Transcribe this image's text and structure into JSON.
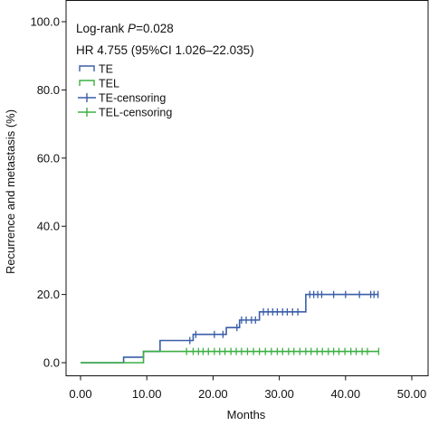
{
  "chart_data": {
    "type": "line",
    "subtype": "kaplan-meier step curve",
    "xlabel": "Months",
    "ylabel": "Recurrence and metastasis (%)",
    "xlim": [
      0,
      50
    ],
    "ylim": [
      0,
      100
    ],
    "xticks": [
      "0.00",
      "10.00",
      "20.00",
      "30.00",
      "40.00",
      "50.00"
    ],
    "yticks": [
      "0.0",
      "20.0",
      "40.0",
      "60.0",
      "80.0",
      "100.0"
    ],
    "grid": false,
    "legend_position": "top-left",
    "annotations": {
      "logrank_prefix": "Log-rank ",
      "logrank_p": "P",
      "logrank_value": "=0.028",
      "hr": "HR 4.755 (95%CI 1.026–22.035)"
    },
    "legend": [
      {
        "label": "TE",
        "kind": "line",
        "color": "#3a5ea8"
      },
      {
        "label": "TEL",
        "kind": "line",
        "color": "#3cb043"
      },
      {
        "label": "TE-censoring",
        "kind": "censor",
        "color": "#3a5ea8"
      },
      {
        "label": "TEL-censoring",
        "kind": "censor",
        "color": "#3cb043"
      }
    ],
    "series": [
      {
        "name": "TE",
        "color": "#3a5ea8",
        "steps": [
          [
            0,
            0
          ],
          [
            6.5,
            1.6
          ],
          [
            9.5,
            3.3
          ],
          [
            12,
            6.5
          ],
          [
            17,
            8.3
          ],
          [
            22,
            10.3
          ],
          [
            24,
            12.5
          ],
          [
            27,
            14.9
          ],
          [
            34,
            20
          ]
        ],
        "end_x": 45,
        "censored_x": [
          16.5,
          17.4,
          20.2,
          21.5,
          23.6,
          24.3,
          25.0,
          25.8,
          26.4,
          27.6,
          28.3,
          29.0,
          29.7,
          30.5,
          31.2,
          32.0,
          32.8,
          34.6,
          35.2,
          35.8,
          36.4,
          38.2,
          40.0,
          42.1,
          43.8,
          44.3,
          44.9
        ]
      },
      {
        "name": "TEL",
        "color": "#3cb043",
        "steps": [
          [
            0,
            0
          ],
          [
            9.5,
            3.3
          ]
        ],
        "end_x": 45,
        "censored_x": [
          16.0,
          17.0,
          17.8,
          18.5,
          19.3,
          20.2,
          21.0,
          21.8,
          22.7,
          23.5,
          24.3,
          25.2,
          26.1,
          27.0,
          27.9,
          28.8,
          29.7,
          30.5,
          31.4,
          32.2,
          33.1,
          34.0,
          34.8,
          35.7,
          36.5,
          37.4,
          38.2,
          39.0,
          39.9,
          40.8,
          41.6,
          42.5,
          43.3,
          45.0
        ]
      }
    ]
  }
}
